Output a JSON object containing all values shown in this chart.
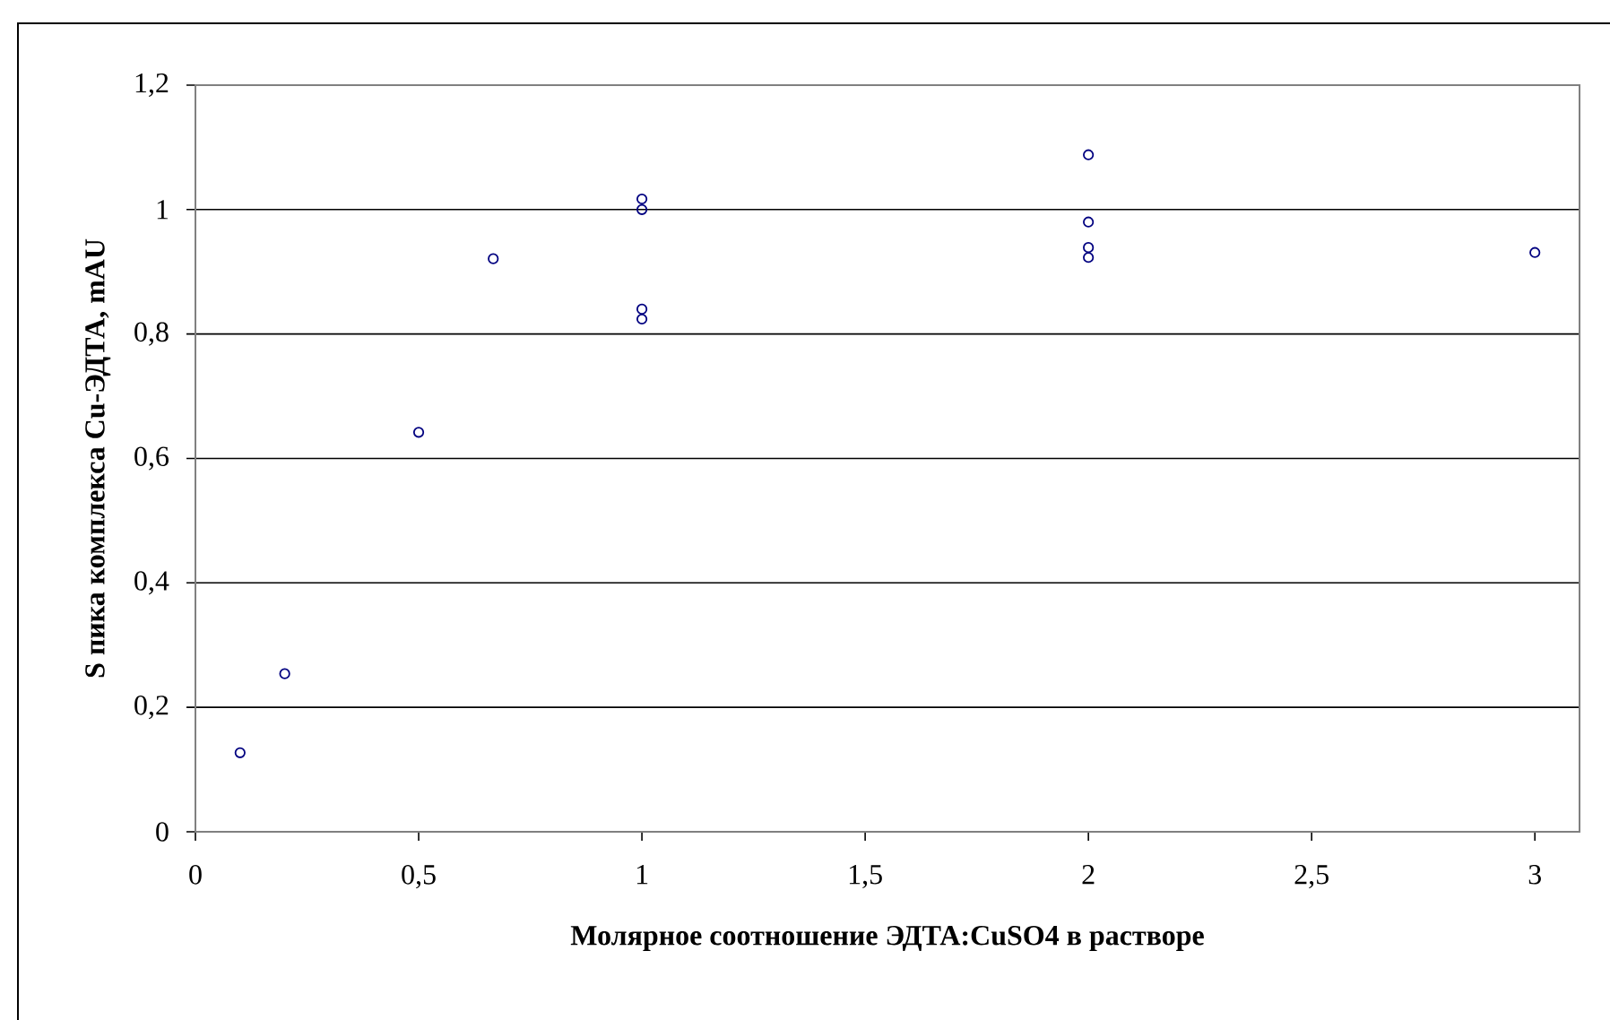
{
  "chart_data": {
    "type": "scatter",
    "xlabel": "Молярное соотношение ЭДТА:CuSO4 в растворе",
    "ylabel": "S пика комплекса Cu-ЭДТА, mAU",
    "x": [
      0.1,
      0.2,
      0.5,
      0.667,
      1,
      1,
      1,
      1,
      2,
      2,
      2,
      2,
      3
    ],
    "series": [
      {
        "color": "#000080",
        "values": [
          0.127,
          0.254,
          0.642,
          0.921,
          1.017,
          1.0,
          0.84,
          0.824,
          1.088,
          0.98,
          0.939,
          0.923,
          0.931
        ]
      }
    ],
    "xlim": [
      0,
      3.1
    ],
    "ylim": [
      0,
      1.2
    ],
    "xticks": [
      0,
      {
        "value": 0.5,
        "label": "0,5"
      },
      1,
      {
        "value": 1.5,
        "label": "1,5"
      },
      2,
      {
        "value": 2.5,
        "label": "2,5"
      },
      3
    ],
    "yticks": [
      0,
      {
        "value": 0.2,
        "label": "0,2"
      },
      {
        "value": 0.4,
        "label": "0,4"
      },
      {
        "value": 0.6,
        "label": "0,6"
      },
      {
        "value": 0.8,
        "label": "0,8"
      },
      1,
      {
        "value": 1.2,
        "label": "1,2"
      }
    ],
    "grid": "y",
    "marker": "circle"
  }
}
